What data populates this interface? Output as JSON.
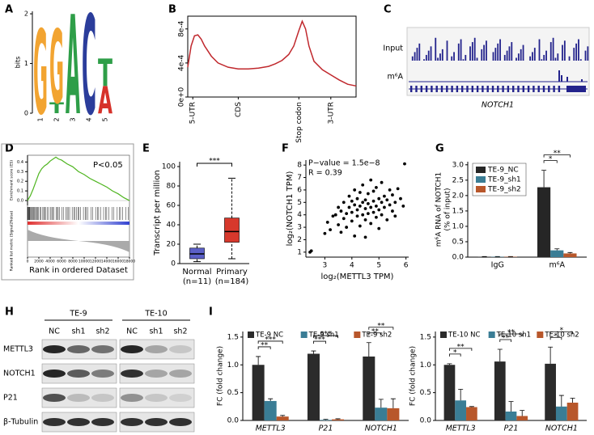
{
  "panel_letters": [
    "A",
    "B",
    "C",
    "D",
    "E",
    "F",
    "G",
    "H",
    "I"
  ],
  "tracks": {
    "labels": [
      "Input",
      "m⁶A"
    ],
    "gene": "NOTCH1"
  },
  "blot": {
    "groups": [
      "TE-9",
      "TE-10"
    ],
    "lanes": [
      "NC",
      "sh1",
      "sh2",
      "NC",
      "sh1",
      "sh2"
    ],
    "proteins": [
      "METTL3",
      "NOTCH1",
      "P21",
      "β-Tubulin"
    ]
  },
  "chart_data": [
    {
      "type": "logo",
      "ylabel": "bits",
      "ylim": [
        0,
        2.05
      ],
      "yticks": [
        0,
        1,
        2
      ],
      "positions": [
        "1",
        "2",
        "3",
        "4",
        "5"
      ],
      "stacks": [
        [
          {
            "letter": "G",
            "height": 1.7,
            "color": "#f2a431"
          }
        ],
        [
          {
            "letter": "T",
            "height": 0.22,
            "color": "#2e9e48"
          },
          {
            "letter": "G",
            "height": 1.48,
            "color": "#f2a431"
          }
        ],
        [
          {
            "letter": "A",
            "height": 2.0,
            "color": "#2e9e48"
          }
        ],
        [
          {
            "letter": "C",
            "height": 2.0,
            "color": "#2b3d9b"
          }
        ],
        [
          {
            "letter": "A",
            "height": 0.55,
            "color": "#d6322a"
          },
          {
            "letter": "T",
            "height": 0.55,
            "color": "#2e9e48"
          }
        ]
      ]
    },
    {
      "type": "line",
      "color": "#c0282d",
      "x": [
        0,
        2,
        4,
        6,
        8,
        10,
        14,
        18,
        24,
        30,
        36,
        42,
        48,
        52,
        56,
        60,
        63,
        66,
        68,
        70,
        72,
        75,
        80,
        85,
        90,
        95,
        100
      ],
      "values": [
        0.00035,
        0.0006,
        0.00072,
        0.00073,
        0.00068,
        0.0006,
        0.00048,
        0.0004,
        0.00035,
        0.00033,
        0.00033,
        0.00034,
        0.00036,
        0.00039,
        0.00043,
        0.0005,
        0.0006,
        0.00078,
        0.00089,
        0.0008,
        0.0006,
        0.00042,
        0.00032,
        0.00026,
        0.0002,
        0.00015,
        0.00013
      ],
      "xlim": [
        0,
        100
      ],
      "ylim": [
        0,
        0.00095
      ],
      "yticks": [
        {
          "value": 0,
          "label": "0e+0"
        },
        {
          "value": 0.0004,
          "label": "4e-4"
        },
        {
          "value": 0.0008,
          "label": "8e-4"
        }
      ],
      "xticks": [
        {
          "value": 3,
          "label": "5-UTR"
        },
        {
          "value": 30,
          "label": "CDS"
        },
        {
          "value": 66,
          "label": "Stop codon"
        },
        {
          "value": 85,
          "label": "3-UTR"
        }
      ]
    },
    {
      "type": "gsea",
      "annotation": "P<0.05",
      "xlabel": "Rank in ordered Dataset",
      "ylabel": "Enrichment score (ES)",
      "ylabel2": "Ranked list metric (Signal2Noise)",
      "color": "#4fb520",
      "x": [
        0,
        500,
        1000,
        1500,
        2000,
        2500,
        3000,
        3500,
        4000,
        4500,
        5000,
        5500,
        6000,
        7000,
        8000,
        9000,
        10000,
        11000,
        12000,
        13000,
        14000,
        15000,
        16000,
        17000,
        18000
      ],
      "values": [
        0,
        0.05,
        0.12,
        0.2,
        0.28,
        0.33,
        0.36,
        0.38,
        0.41,
        0.43,
        0.45,
        0.43,
        0.42,
        0.38,
        0.35,
        0.3,
        0.27,
        0.23,
        0.2,
        0.17,
        0.14,
        0.1,
        0.07,
        0.03,
        0
      ],
      "xlim": [
        0,
        18000
      ],
      "xticks": [
        0,
        2000,
        4000,
        6000,
        8000,
        10000,
        12000,
        14000,
        16000,
        18000
      ],
      "ylim": [
        -0.05,
        0.47
      ],
      "yticks": [
        {
          "value": 0,
          "label": "0.0"
        },
        {
          "value": 0.1,
          "label": "0.1"
        },
        {
          "value": 0.2,
          "label": "0.2"
        },
        {
          "value": 0.3,
          "label": "0.3"
        },
        {
          "value": 0.4,
          "label": "0.4"
        }
      ]
    },
    {
      "type": "box",
      "ylabel": "Transcript per million",
      "categories": [
        "Normal",
        "Primary"
      ],
      "n_labels": [
        "(n=11)",
        "(n=184)"
      ],
      "boxes": [
        {
          "min": 2,
          "q1": 5,
          "median": 10,
          "q3": 16,
          "max": 20,
          "color": "#5b5fc7"
        },
        {
          "min": 5,
          "q1": 22,
          "median": 33,
          "q3": 47,
          "max": 88,
          "color": "#d7382c"
        }
      ],
      "ylim": [
        0,
        105
      ],
      "yticks": [
        0,
        20,
        40,
        60,
        80,
        100
      ],
      "significance": "***"
    },
    {
      "type": "scatter",
      "annotations": [
        "P−value = 1.5e−8",
        "R = 0.39"
      ],
      "xlabel": "log₂(METTL3 TPM)",
      "ylabel": "log₂(NOTCH1 TPM)",
      "color": "#000000",
      "x": [
        2.45,
        2.5,
        3.0,
        3.1,
        3.2,
        3.3,
        3.4,
        3.5,
        3.5,
        3.6,
        3.6,
        3.7,
        3.7,
        3.8,
        3.8,
        3.9,
        3.9,
        4.0,
        4.0,
        4.0,
        4.1,
        4.1,
        4.1,
        4.2,
        4.2,
        4.2,
        4.3,
        4.3,
        4.3,
        4.4,
        4.4,
        4.4,
        4.5,
        4.5,
        4.5,
        4.5,
        4.6,
        4.6,
        4.6,
        4.7,
        4.7,
        4.7,
        4.8,
        4.8,
        4.8,
        4.9,
        4.9,
        4.9,
        5.0,
        5.0,
        5.0,
        5.1,
        5.1,
        5.1,
        5.2,
        5.2,
        5.3,
        5.3,
        5.4,
        5.4,
        5.5,
        5.5,
        5.6,
        5.6,
        5.7,
        5.8,
        5.9,
        5.95
      ],
      "values": [
        1.0,
        1.1,
        2.5,
        3.4,
        2.8,
        3.9,
        4.0,
        3.2,
        4.6,
        2.6,
        4.3,
        3.7,
        5.0,
        4.1,
        3.0,
        4.6,
        5.5,
        3.5,
        4.2,
        5.1,
        2.3,
        4.8,
        6.0,
        3.9,
        4.4,
        5.3,
        3.1,
        4.7,
        5.8,
        4.0,
        5.0,
        6.4,
        3.6,
        4.5,
        5.2,
        2.2,
        4.1,
        4.9,
        5.7,
        3.3,
        4.6,
        6.8,
        4.2,
        5.1,
        5.9,
        3.8,
        4.7,
        6.2,
        4.4,
        5.3,
        2.9,
        4.0,
        5.0,
        6.6,
        4.6,
        5.5,
        3.6,
        5.2,
        4.8,
        6.0,
        4.3,
        5.6,
        5.0,
        3.9,
        6.1,
        5.3,
        4.7,
        8.1
      ],
      "xlim": [
        2.3,
        6.1
      ],
      "xticks": [
        3,
        4,
        5,
        6
      ],
      "ylim": [
        0.6,
        8.4
      ],
      "yticks": [
        1,
        2,
        3,
        4,
        5,
        6,
        7,
        8
      ]
    },
    {
      "type": "grouped-bar",
      "ylabel": "m⁶A RNA of NOTCH1",
      "ylabel2": "(% of input)",
      "categories": [
        "IgG",
        "m⁶A"
      ],
      "legend": "upper-left",
      "italic_categories": false,
      "series": [
        {
          "name": "TE-9_NC",
          "color": "#262626",
          "values": [
            0.01,
            2.27
          ],
          "errors": [
            0.01,
            0.55
          ]
        },
        {
          "name": "TE-9_sh1",
          "color": "#3a7d95",
          "values": [
            0.01,
            0.22
          ],
          "errors": [
            0.01,
            0.05
          ]
        },
        {
          "name": "TE-9_sh2",
          "color": "#b8572b",
          "values": [
            0.01,
            0.12
          ],
          "errors": [
            0.01,
            0.03
          ]
        }
      ],
      "ylim": [
        0,
        3.1
      ],
      "yticks": [
        {
          "value": 0,
          "label": "0.0"
        },
        {
          "value": 0.5,
          "label": "0.5"
        },
        {
          "value": 1,
          "label": "1.0"
        },
        {
          "value": 1.5,
          "label": "1.5"
        },
        {
          "value": 2,
          "label": "2.0"
        },
        {
          "value": 2.5,
          "label": "2.5"
        },
        {
          "value": 3,
          "label": "3.0"
        }
      ],
      "significance": [
        [],
        [
          "*",
          "**"
        ]
      ]
    },
    {
      "type": "grouped-bar",
      "ylabel": "FC (fold change)",
      "categories": [
        "METTL3",
        "P21",
        "NOTCH1"
      ],
      "legend": "top",
      "italic_categories": true,
      "series": [
        {
          "name": "TE-9 NC",
          "color": "#2b2b2b",
          "values": [
            1.0,
            1.2,
            1.15
          ],
          "errors": [
            0.15,
            0.05,
            0.25
          ]
        },
        {
          "name": "TE-9 sh1",
          "color": "#3a7d95",
          "values": [
            0.35,
            0.01,
            0.23
          ],
          "errors": [
            0.04,
            0.01,
            0.15
          ]
        },
        {
          "name": "TE-9 sh2",
          "color": "#b8572b",
          "values": [
            0.07,
            0.02,
            0.22
          ],
          "errors": [
            0.02,
            0.01,
            0.17
          ]
        }
      ],
      "ylim": [
        0,
        1.6
      ],
      "yticks": [
        {
          "value": 0,
          "label": "0.0"
        },
        {
          "value": 0.5,
          "label": "0.5"
        },
        {
          "value": 1,
          "label": "1.0"
        },
        {
          "value": 1.5,
          "label": "1.5"
        }
      ],
      "significance": [
        [
          "**",
          "***"
        ],
        [
          "***",
          "***"
        ],
        [
          "**",
          "**"
        ]
      ]
    },
    {
      "type": "grouped-bar",
      "ylabel": "FC (fold change)",
      "categories": [
        "METTL3",
        "P21",
        "NOTCH1"
      ],
      "legend": "top",
      "italic_categories": true,
      "series": [
        {
          "name": "TE-10 NC",
          "color": "#2b2b2b",
          "values": [
            1.0,
            1.06,
            1.02
          ],
          "errors": [
            0.02,
            0.22,
            0.3
          ]
        },
        {
          "name": "TE-10 sh1",
          "color": "#3a7d95",
          "values": [
            0.36,
            0.16,
            0.25
          ],
          "errors": [
            0.2,
            0.18,
            0.2
          ]
        },
        {
          "name": "TE-10 sh2",
          "color": "#b8572b",
          "values": [
            0.24,
            0.08,
            0.32
          ],
          "errors": [
            0.01,
            0.1,
            0.08
          ]
        }
      ],
      "ylim": [
        0,
        1.6
      ],
      "yticks": [
        {
          "value": 0,
          "label": "0.0"
        },
        {
          "value": 0.5,
          "label": "0.5"
        },
        {
          "value": 1,
          "label": "1.0"
        },
        {
          "value": 1.5,
          "label": "1.5"
        }
      ],
      "significance": [
        [
          "*",
          "**"
        ],
        [
          "**",
          "**"
        ],
        [
          "*",
          "*"
        ]
      ]
    }
  ]
}
